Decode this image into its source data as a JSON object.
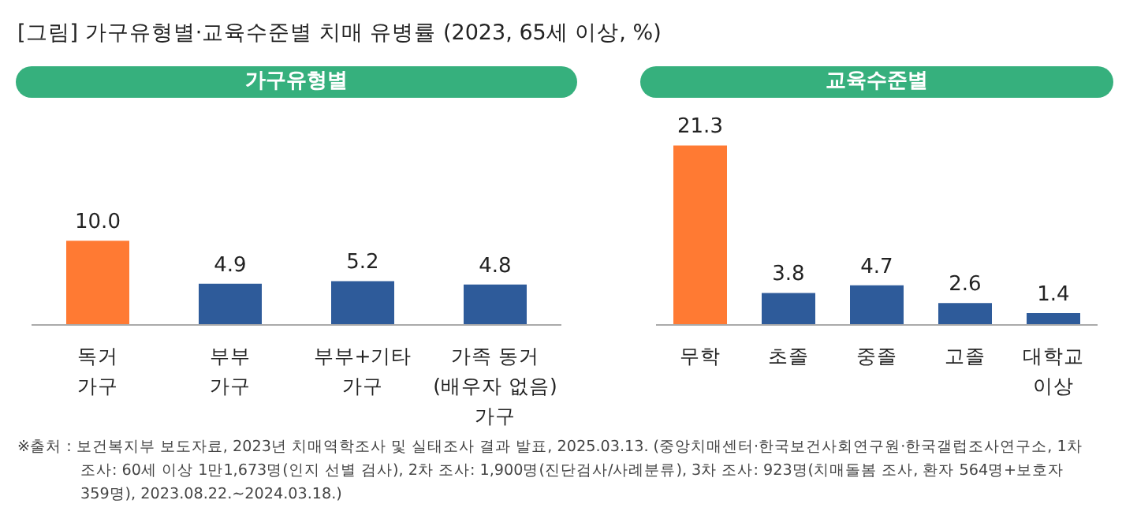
{
  "chart_data": [
    {
      "type": "bar",
      "title": "[그림] 가구유형별·교육수준별 치매 유병률 (2023, 65세 이상, %)",
      "subtitle": "가구유형별",
      "categories": [
        "독거\n가구",
        "부부\n가구",
        "부부+기타\n가구",
        "가족 동거\n(배우자 없음)\n가구"
      ],
      "values": [
        10.0,
        4.9,
        5.2,
        4.8
      ],
      "value_labels": [
        "10.0",
        "4.9",
        "5.2",
        "4.8"
      ],
      "colors": [
        "#ff7a33",
        "#2e5b9a",
        "#2e5b9a",
        "#2e5b9a"
      ],
      "grid": false,
      "legend": false,
      "annotations": [
        "※출처 : 보건복지부 보도자료, 2023년 치매역학조사 및 실태조사 결과 발표, 2025.03.13. (중앙치매센터·한국보건사회연구원·한국갤럽조사연구소, 1차 조사: 60세 이상 1만1,673명(인지 선별 검사), 2차 조사: 1,900명(진단검사/사례분류), 3차 조사: 923명(치매돌봄 조사, 환자 564명+보호자 359명), 2023.08.22.~2024.03.18.)"
      ]
    },
    {
      "type": "bar",
      "subtitle": "교육수준별",
      "categories": [
        "무학",
        "초졸",
        "중졸",
        "고졸",
        "대학교\n이상"
      ],
      "values": [
        21.3,
        3.8,
        4.7,
        2.6,
        1.4
      ],
      "value_labels": [
        "21.3",
        "3.8",
        "4.7",
        "2.6",
        "1.4"
      ],
      "colors": [
        "#ff7a33",
        "#2e5b9a",
        "#2e5b9a",
        "#2e5b9a",
        "#2e5b9a"
      ],
      "grid": false,
      "legend": false
    }
  ]
}
